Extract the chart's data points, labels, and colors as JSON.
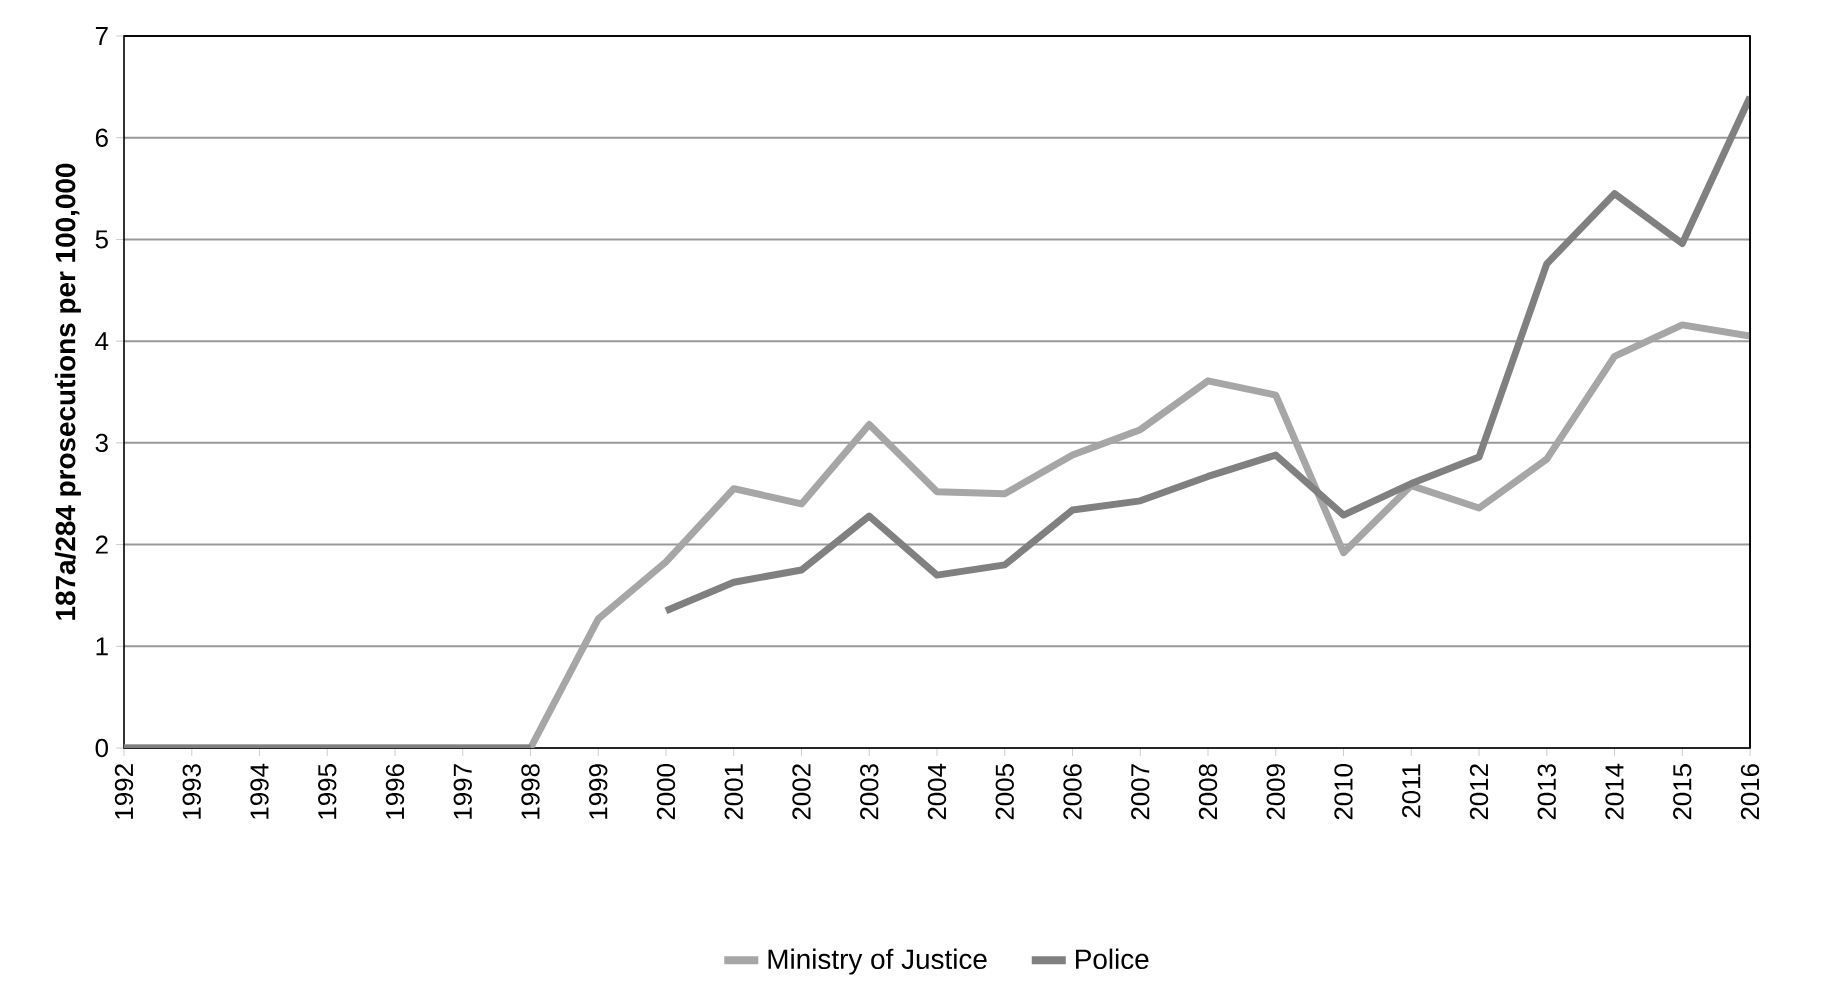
{
  "chart_data": {
    "type": "line",
    "ylabel": "187a/284 prosecutions per 100,000",
    "categories": [
      "1992",
      "1993",
      "1994",
      "1995",
      "1996",
      "1997",
      "1998",
      "1999",
      "2000",
      "2001",
      "2002",
      "2003",
      "2004",
      "2005",
      "2006",
      "2007",
      "2008",
      "2009",
      "2010",
      "2011",
      "2012",
      "2013",
      "2014",
      "2015",
      "2016"
    ],
    "series": [
      {
        "name": "Ministry of Justice",
        "color": "#a6a6a6",
        "values": [
          0,
          0,
          0,
          0,
          0,
          0,
          0,
          1.27,
          1.83,
          2.55,
          2.4,
          3.18,
          2.52,
          2.5,
          2.88,
          3.13,
          3.61,
          3.47,
          1.92,
          2.58,
          2.36,
          2.84,
          3.85,
          4.16,
          4.05
        ]
      },
      {
        "name": "Police",
        "color": "#808080",
        "values": [
          0,
          0,
          0,
          0,
          0,
          0,
          0,
          null,
          1.35,
          1.63,
          1.75,
          2.28,
          1.7,
          1.8,
          2.34,
          2.43,
          2.67,
          2.88,
          2.29,
          2.6,
          2.86,
          4.76,
          5.45,
          4.96,
          6.4
        ]
      }
    ],
    "ylim": [
      0,
      7
    ],
    "yticks": [
      0,
      1,
      2,
      3,
      4,
      5,
      6,
      7
    ],
    "grid": "y",
    "legend": "bottom",
    "marker": "none",
    "line_style": "solid"
  }
}
